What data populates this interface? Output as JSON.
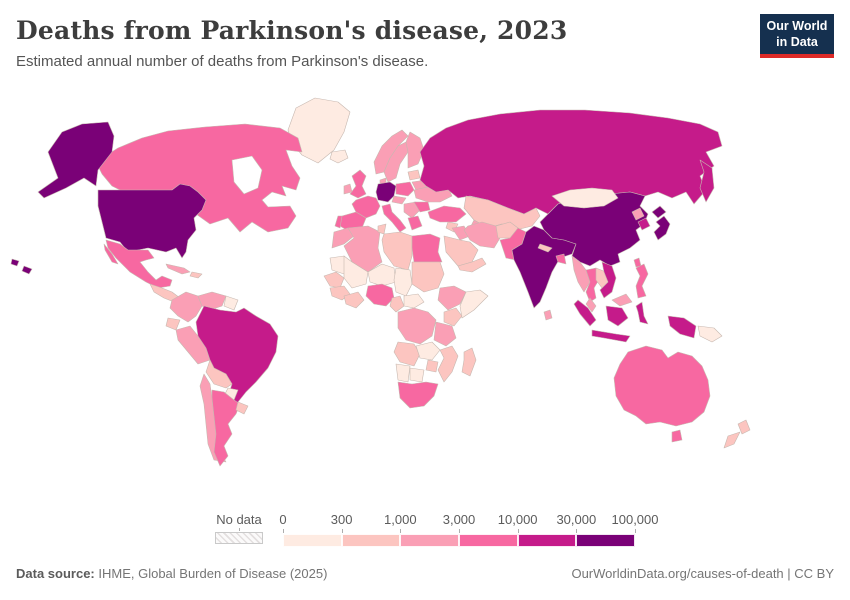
{
  "header": {
    "title": "Deaths from Parkinson's disease, 2023",
    "subtitle": "Estimated annual number of deaths from Parkinson's disease."
  },
  "logo": {
    "line1": "Our World",
    "line2": "in Data",
    "bg_color": "#15304f",
    "accent_color": "#dd2a27"
  },
  "legend": {
    "no_data_label": "No data",
    "tick_labels": [
      "0",
      "300",
      "1,000",
      "3,000",
      "10,000",
      "30,000",
      "100,000"
    ]
  },
  "footer": {
    "source_label": "Data source:",
    "source_text": " IHME, Global Burden of Disease (2025)",
    "link_text": "OurWorldinData.org/causes-of-death | CC BY"
  },
  "chart_data": {
    "type": "choropleth_map",
    "title": "Deaths from Parkinson's disease, 2023",
    "metric": "Estimated annual number of deaths from Parkinson's disease",
    "year": "2023",
    "legend_bins": [
      {
        "label": "0–300",
        "color": "#feebe2"
      },
      {
        "label": "300–1,000",
        "color": "#fcc5c0"
      },
      {
        "label": "1,000–3,000",
        "color": "#fa9fb5"
      },
      {
        "label": "3,000–10,000",
        "color": "#f768a1"
      },
      {
        "label": "10,000–30,000",
        "color": "#c51b8a"
      },
      {
        "label": "30,000–100,000",
        "color": "#7a0177"
      }
    ],
    "countries": {
      "Greenland": 0,
      "Iceland": 0,
      "Canada": 3,
      "United States": 5,
      "Mexico": 3,
      "Central America": 1,
      "Cuba": 2,
      "Hispaniola": 1,
      "Colombia": 2,
      "Venezuela": 2,
      "Guyana": 0,
      "Ecuador": 1,
      "Peru": 2,
      "Brazil": 4,
      "Bolivia": 1,
      "Paraguay": 0,
      "Chile": 2,
      "Argentina": 3,
      "Uruguay": 1,
      "United Kingdom": 3,
      "Ireland": 2,
      "Norway": 2,
      "Sweden": 2,
      "Finland": 2,
      "Denmark": 2,
      "Germany": 5,
      "France": 3,
      "Spain": 3,
      "Portugal": 3,
      "Italy": 3,
      "Poland": 3,
      "Czechia-Austria": 2,
      "Balkans": 2,
      "Greece": 3,
      "Romania": 3,
      "Ukraine": 2,
      "Belarus": 2,
      "Baltics": 1,
      "Russia": 4,
      "Kazakhstan": 1,
      "Uzbekistan": 2,
      "Turkey": 3,
      "Syria": 1,
      "Iraq": 2,
      "Iran": 2,
      "Afghanistan": 1,
      "Pakistan": 3,
      "Saudi Arabia": 1,
      "Yemen": 1,
      "India": 5,
      "Nepal": 1,
      "Bangladesh": 3,
      "Sri Lanka": 2,
      "Mongolia": 0,
      "China": 5,
      "North Korea": 2,
      "South Korea": 4,
      "Japan": 5,
      "Taiwan": 3,
      "Myanmar": 2,
      "Thailand": 3,
      "Laos-Cambodia": 1,
      "Vietnam": 4,
      "Malaysia": 2,
      "Philippines": 3,
      "Indonesia": 4,
      "Papua New Guinea": 0,
      "Australia": 3,
      "New Zealand": 1,
      "Morocco": 2,
      "Algeria": 2,
      "Tunisia": 1,
      "Libya": 1,
      "Egypt": 3,
      "Mauritania": 0,
      "Mali": 0,
      "Niger": 0,
      "Chad": 0,
      "Sudan": 1,
      "Senegal": 1,
      "Guinea": 1,
      "Ghana-Ivory Coast": 1,
      "Nigeria": 3,
      "Cameroon": 1,
      "Central African Republic": 0,
      "Ethiopia": 2,
      "Somalia": 0,
      "Kenya": 1,
      "DR Congo": 2,
      "Tanzania": 2,
      "Angola": 1,
      "Zambia": 0,
      "Mozambique": 1,
      "Zimbabwe": 1,
      "Namibia": 0,
      "Botswana": 0,
      "South Africa": 3,
      "Madagascar": 1
    }
  }
}
